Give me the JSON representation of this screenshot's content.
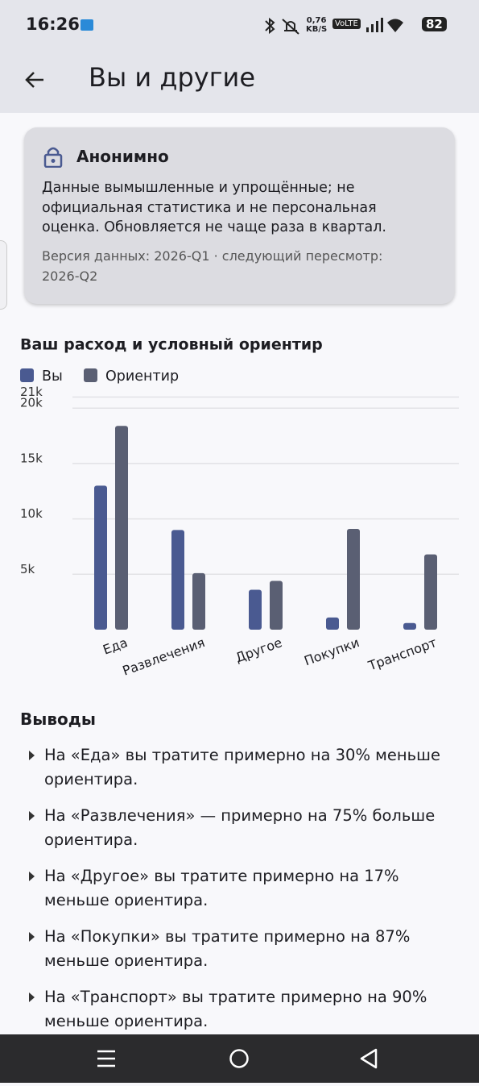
{
  "status_bar": {
    "time": "16:26",
    "net_speed": "0,76",
    "net_unit": "KB/S",
    "volte": "VoLTE",
    "battery": "82"
  },
  "app_bar": {
    "title": "Вы и другие"
  },
  "card": {
    "title": "Анонимно",
    "body": "Данные вымышленные и упрощённые; не официальная статистика и не персональная оценка. Обновляется не чаще раза в квартал.",
    "version": "Версия данных: 2026-Q1 · следующий пересмотр: 2026-Q2"
  },
  "chart_data": {
    "type": "bar",
    "title": "Ваш расход и условный ориентир",
    "categories": [
      "Еда",
      "Развлечения",
      "Другое",
      "Покупки",
      "Транспорт"
    ],
    "series": [
      {
        "name": "Вы",
        "color": "#4a5a91",
        "values": [
          13000,
          9000,
          3600,
          1100,
          600
        ]
      },
      {
        "name": "Ориентир",
        "color": "#5a5f73",
        "values": [
          18400,
          5100,
          4400,
          9100,
          6800
        ]
      }
    ],
    "ylim": [
      0,
      21000
    ],
    "yticks": [
      {
        "value": 5000,
        "label": "5k"
      },
      {
        "value": 10000,
        "label": "10k"
      },
      {
        "value": 15000,
        "label": "15k"
      },
      {
        "value": 20000,
        "label": "20k"
      },
      {
        "value": 21000,
        "label": "21k"
      }
    ],
    "grid": true,
    "legend": "top-left"
  },
  "insights": {
    "title": "Выводы",
    "items": [
      "На «Еда» вы тратите примерно на 30% меньше ориентира.",
      "На «Развлечения» — примерно на 75% больше ориентира.",
      "На «Другое» вы тратите примерно на 17% меньше ориентира.",
      "На «Покупки» вы тратите примерно на 87% меньше ориентира.",
      "На «Транспорт» вы тратите примерно на 90% меньше ориентира."
    ]
  }
}
